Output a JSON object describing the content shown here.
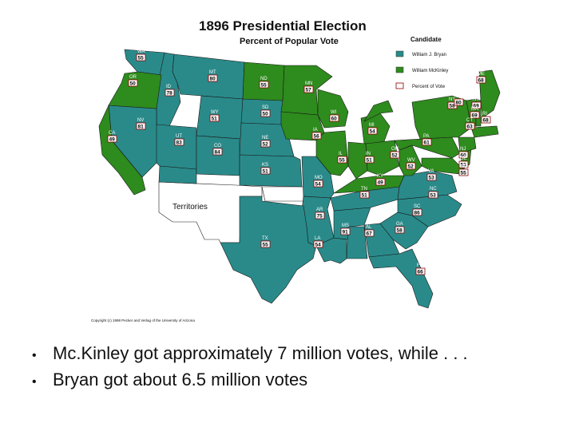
{
  "map": {
    "title": "1896 Presidential Election",
    "subtitle": "Percent of Popular Vote",
    "territories_label": "Territories",
    "copyright": "Copyright (c) 1998 Pecker and Verlag of the University of Arizona"
  },
  "legend": {
    "heading": "Candidate",
    "items": [
      {
        "label": "William J. Bryan",
        "color": "#2a8a8a"
      },
      {
        "label": "William McKinley",
        "color": "#2e8b1d"
      },
      {
        "label": "Percent of Vote",
        "color": "#ffffff"
      }
    ]
  },
  "states": [
    {
      "abbr": "WA",
      "pct": "55",
      "winner": "bryan"
    },
    {
      "abbr": "OR",
      "pct": "50",
      "winner": "mckinley"
    },
    {
      "abbr": "ID",
      "pct": "78",
      "winner": "bryan"
    },
    {
      "abbr": "MT",
      "pct": "80",
      "winner": "bryan"
    },
    {
      "abbr": "ND",
      "pct": "55",
      "winner": "mckinley"
    },
    {
      "abbr": "MN",
      "pct": "57",
      "winner": "mckinley"
    },
    {
      "abbr": "SD",
      "pct": "50",
      "winner": "bryan"
    },
    {
      "abbr": "WY",
      "pct": "51",
      "winner": "bryan"
    },
    {
      "abbr": "NV",
      "pct": "81",
      "winner": "bryan"
    },
    {
      "abbr": "CA",
      "pct": "49",
      "winner": "mckinley"
    },
    {
      "abbr": "UT",
      "pct": "83",
      "winner": "bryan"
    },
    {
      "abbr": "CO",
      "pct": "84",
      "winner": "bryan"
    },
    {
      "abbr": "NE",
      "pct": "52",
      "winner": "bryan"
    },
    {
      "abbr": "KS",
      "pct": "51",
      "winner": "bryan"
    },
    {
      "abbr": "IA",
      "pct": "56",
      "winner": "mckinley"
    },
    {
      "abbr": "WI",
      "pct": "60",
      "winner": "mckinley"
    },
    {
      "abbr": "MI",
      "pct": "54",
      "winner": "mckinley"
    },
    {
      "abbr": "IL",
      "pct": "55",
      "winner": "mckinley"
    },
    {
      "abbr": "IN",
      "pct": "51",
      "winner": "mckinley"
    },
    {
      "abbr": "OH",
      "pct": "52",
      "winner": "mckinley"
    },
    {
      "abbr": "MO",
      "pct": "54",
      "winner": "bryan"
    },
    {
      "abbr": "KY",
      "pct": "49",
      "winner": "mckinley"
    },
    {
      "abbr": "WV",
      "pct": "52",
      "winner": "mckinley"
    },
    {
      "abbr": "PA",
      "pct": "61",
      "winner": "mckinley"
    },
    {
      "abbr": "NY",
      "pct": "58",
      "winner": "mckinley"
    },
    {
      "abbr": "VA",
      "pct": "53",
      "winner": "bryan"
    },
    {
      "abbr": "NC",
      "pct": "53",
      "winner": "bryan"
    },
    {
      "abbr": "TN",
      "pct": "51",
      "winner": "bryan"
    },
    {
      "abbr": "AR",
      "pct": "75",
      "winner": "bryan"
    },
    {
      "abbr": "SC",
      "pct": "86",
      "winner": "bryan"
    },
    {
      "abbr": "MS",
      "pct": "91",
      "winner": "bryan"
    },
    {
      "abbr": "AL",
      "pct": "67",
      "winner": "bryan"
    },
    {
      "abbr": "GA",
      "pct": "58",
      "winner": "bryan"
    },
    {
      "abbr": "LA",
      "pct": "54",
      "winner": "bryan"
    },
    {
      "abbr": "TX",
      "pct": "55",
      "winner": "bryan"
    },
    {
      "abbr": "FL",
      "pct": "66",
      "winner": "bryan"
    },
    {
      "abbr": "ME",
      "pct": "68",
      "winner": "mckinley"
    },
    {
      "abbr": "VT",
      "pct": "80",
      "winner": "mckinley"
    },
    {
      "abbr": "NH",
      "pct": "69",
      "winner": "mckinley"
    },
    {
      "abbr": "MA",
      "pct": "69",
      "winner": "mckinley"
    },
    {
      "abbr": "RI",
      "pct": "68",
      "winner": "mckinley"
    },
    {
      "abbr": "CT",
      "pct": "63",
      "winner": "mckinley"
    },
    {
      "abbr": "NJ",
      "pct": "60",
      "winner": "mckinley"
    },
    {
      "abbr": "DE",
      "pct": "53",
      "winner": "mckinley"
    },
    {
      "abbr": "MD",
      "pct": "55",
      "winner": "mckinley"
    }
  ],
  "bullets": [
    "Mc.Kinley got approximately 7 million votes, while . . .",
    "Bryan got about 6.5 million votes"
  ]
}
